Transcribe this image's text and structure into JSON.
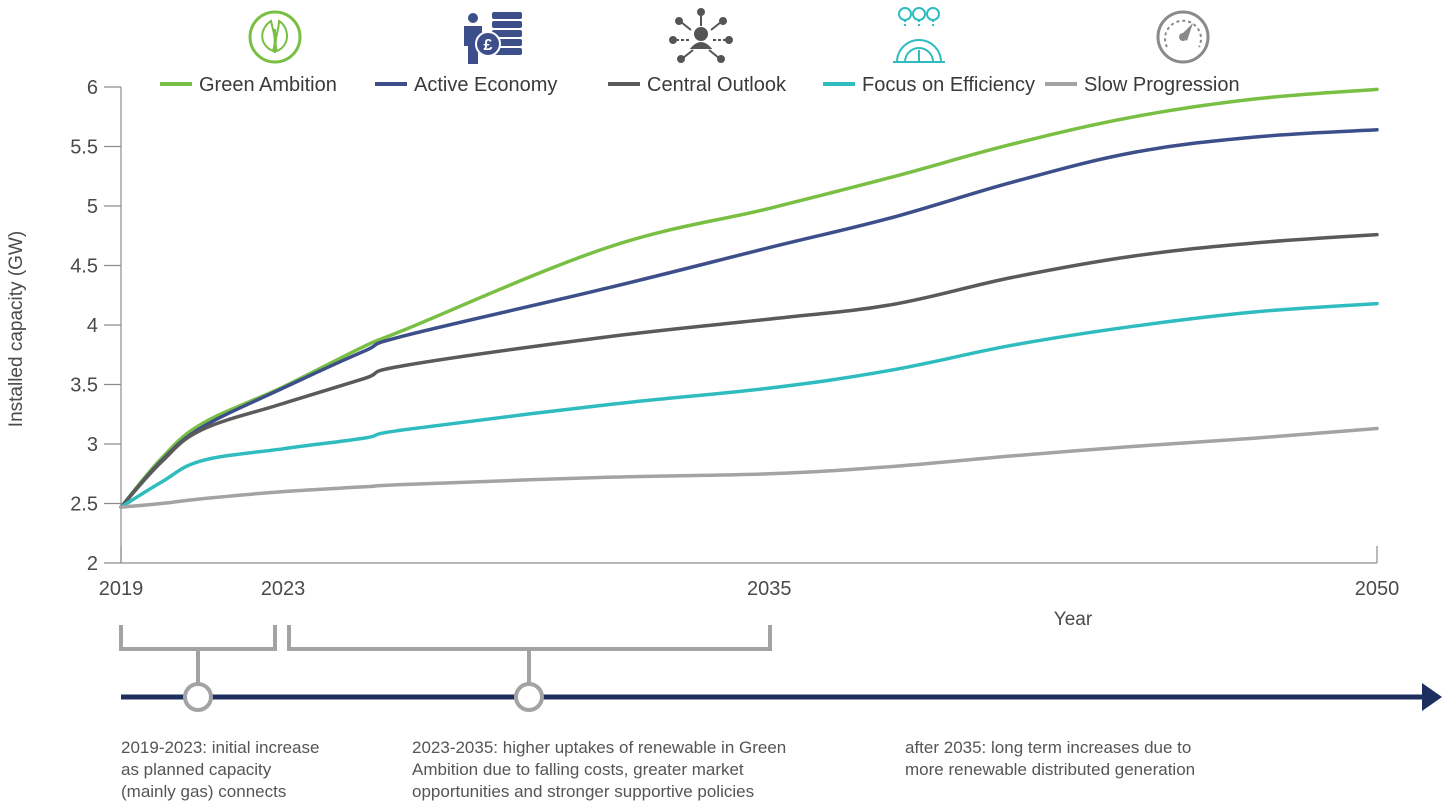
{
  "chart_data": {
    "type": "line",
    "xlabel": "Year",
    "ylabel": "Installed capacity (GW)",
    "ylim": [
      2,
      6
    ],
    "xlim": [
      2019,
      2050
    ],
    "y_ticks": [
      "2",
      "2.5",
      "3",
      "3.5",
      "4",
      "4.5",
      "5",
      "5.5",
      "6"
    ],
    "x_ticks": [
      "2019",
      "2023",
      "2035",
      "2050"
    ],
    "legend_position": "top",
    "grid": false,
    "x": [
      2019,
      2020,
      2021,
      2023,
      2025,
      2026,
      2031,
      2035,
      2038,
      2041,
      2044,
      2047,
      2050
    ],
    "series": [
      {
        "name": "Green Ambition",
        "color": "#79bf43",
        "values": [
          2.47,
          2.88,
          3.17,
          3.48,
          3.82,
          3.96,
          4.65,
          4.98,
          5.24,
          5.52,
          5.75,
          5.9,
          5.98
        ]
      },
      {
        "name": "Active Economy",
        "color": "#3d4f8a",
        "values": [
          2.47,
          2.86,
          3.14,
          3.47,
          3.78,
          3.91,
          4.31,
          4.65,
          4.9,
          5.2,
          5.45,
          5.58,
          5.64
        ]
      },
      {
        "name": "Central Outlook",
        "color": "#5a5a5a",
        "values": [
          2.47,
          2.85,
          3.12,
          3.34,
          3.55,
          3.66,
          3.9,
          4.05,
          4.17,
          4.4,
          4.58,
          4.69,
          4.76
        ]
      },
      {
        "name": "Focus on Efficiency",
        "color": "#2fbcbf",
        "values": [
          2.47,
          2.68,
          2.86,
          2.96,
          3.05,
          3.12,
          3.33,
          3.47,
          3.62,
          3.83,
          3.99,
          4.11,
          4.18
        ]
      },
      {
        "name": "Slow Progression",
        "color": "#a3a3a3",
        "values": [
          2.47,
          2.5,
          2.54,
          2.6,
          2.64,
          2.66,
          2.72,
          2.75,
          2.81,
          2.9,
          2.98,
          3.05,
          3.13
        ]
      }
    ],
    "legend_icons": [
      "leaf-circle-icon",
      "person-pound-coins-icon",
      "network-person-icon",
      "gear-dial-cost-icon",
      "speedometer-icon"
    ],
    "timeline": {
      "color": "#1c2f5e",
      "notes": [
        {
          "lines": [
            "2019-2023: initial increase",
            "as planned capacity",
            "(mainly gas) connects"
          ]
        },
        {
          "lines": [
            "2023-2035: higher uptakes of renewable in Green",
            "Ambition due to falling costs, greater market",
            "opportunities and stronger supportive policies"
          ]
        },
        {
          "lines": [
            "after 2035: long term increases due to",
            "more renewable distributed generation"
          ]
        }
      ]
    }
  }
}
